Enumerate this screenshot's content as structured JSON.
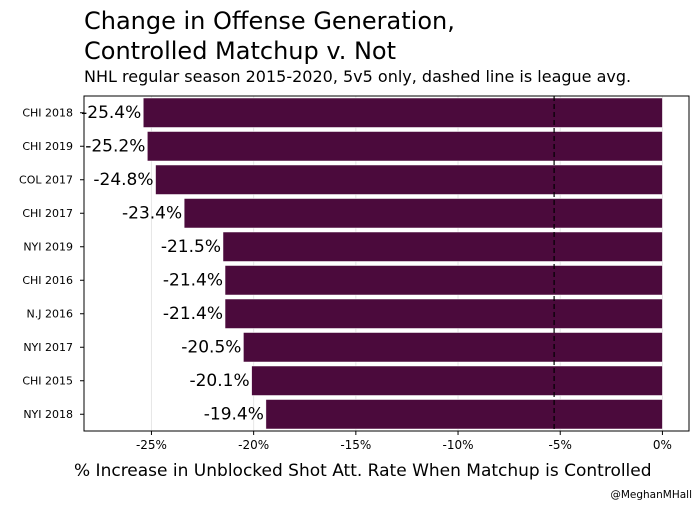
{
  "chart_data": {
    "type": "bar",
    "orientation": "horizontal",
    "title_line1": "Change in Offense Generation,",
    "title_line2": "Controlled Matchup v. Not",
    "subtitle": "NHL regular season 2015-2020, 5v5 only, dashed line is league avg.",
    "xlabel": "% Increase in Unblocked Shot Att. Rate When Matchup is Controlled",
    "credit": "@MeghanMHall",
    "categories": [
      "CHI 2018",
      "CHI 2019",
      "COL 2017",
      "CHI 2017",
      "NYI 2019",
      "CHI 2016",
      "N.J 2016",
      "NYI 2017",
      "CHI 2015",
      "NYI 2018"
    ],
    "values": [
      -25.4,
      -25.2,
      -24.8,
      -23.4,
      -21.5,
      -21.4,
      -21.4,
      -20.5,
      -20.1,
      -19.4
    ],
    "data_labels": [
      "-25.4%",
      "-25.2%",
      "-24.8%",
      "-23.4%",
      "-21.5%",
      "-21.4%",
      "-21.4%",
      "-20.5%",
      "-20.1%",
      "-19.4%"
    ],
    "xlim": [
      -28.3,
      1.3
    ],
    "xticks": [
      -25,
      -20,
      -15,
      -10,
      -5,
      0
    ],
    "xtick_labels": [
      "-25%",
      "-20%",
      "-15%",
      "-10%",
      "-5%",
      "0%"
    ],
    "league_avg": -5.3,
    "grid": true,
    "legend": "none",
    "colors": {
      "bar": "#4B0A3C",
      "bar_edge": "#ffffff",
      "avg_line": "#000000"
    }
  }
}
